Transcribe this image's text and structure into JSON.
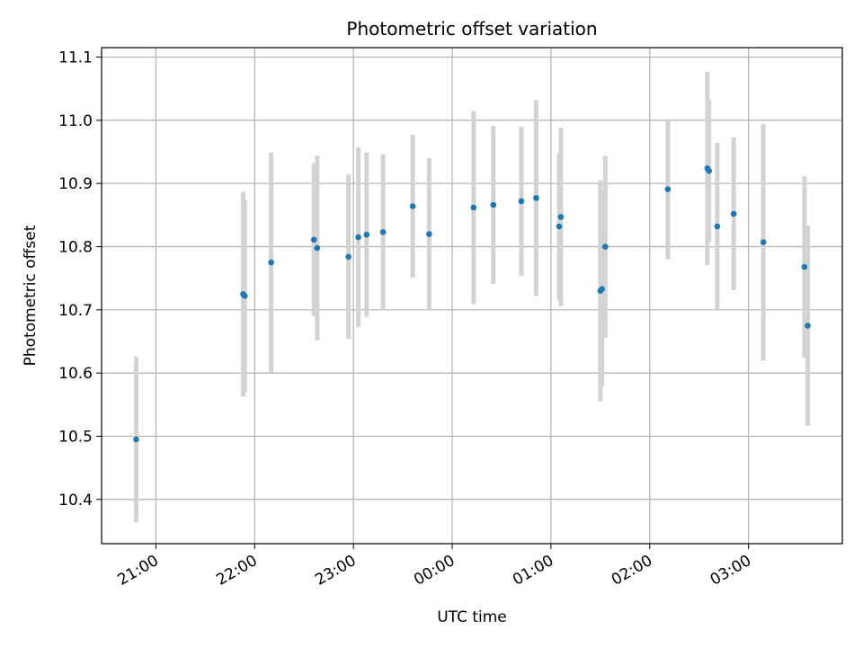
{
  "chart_data": {
    "type": "scatter",
    "title": "Photometric offset variation",
    "xlabel": "UTC time",
    "ylabel": "Photometric offset",
    "x_axis_type": "time",
    "x_range": [
      "20:27",
      "03:57"
    ],
    "x_ticks": [
      "21:00",
      "22:00",
      "23:00",
      "00:00",
      "01:00",
      "02:00",
      "03:00"
    ],
    "ylim": [
      10.33,
      11.115
    ],
    "y_ticks": [
      "10.4",
      "10.5",
      "10.6",
      "10.7",
      "10.8",
      "10.9",
      "11.0",
      "11.1"
    ],
    "grid": true,
    "colors": {
      "marker": "#1f77b4",
      "errorbar": "#d3d3d3"
    },
    "points": [
      {
        "x": "20:48",
        "y": 10.495,
        "err": 0.131
      },
      {
        "x": "21:53",
        "y": 10.725,
        "err": 0.162
      },
      {
        "x": "21:54",
        "y": 10.722,
        "err": 0.152
      },
      {
        "x": "22:10",
        "y": 10.775,
        "err": 0.174
      },
      {
        "x": "22:36",
        "y": 10.811,
        "err": 0.121
      },
      {
        "x": "22:38",
        "y": 10.798,
        "err": 0.146
      },
      {
        "x": "22:57",
        "y": 10.784,
        "err": 0.13
      },
      {
        "x": "23:03",
        "y": 10.815,
        "err": 0.142
      },
      {
        "x": "23:08",
        "y": 10.819,
        "err": 0.13
      },
      {
        "x": "23:18",
        "y": 10.823,
        "err": 0.123
      },
      {
        "x": "23:36",
        "y": 10.864,
        "err": 0.113
      },
      {
        "x": "23:46",
        "y": 10.82,
        "err": 0.12
      },
      {
        "x": "00:13",
        "y": 10.862,
        "err": 0.153
      },
      {
        "x": "00:25",
        "y": 10.866,
        "err": 0.125
      },
      {
        "x": "00:42",
        "y": 10.872,
        "err": 0.118
      },
      {
        "x": "00:51",
        "y": 10.877,
        "err": 0.155
      },
      {
        "x": "01:05",
        "y": 10.832,
        "err": 0.116
      },
      {
        "x": "01:06",
        "y": 10.847,
        "err": 0.141
      },
      {
        "x": "01:30",
        "y": 10.73,
        "err": 0.175
      },
      {
        "x": "01:31",
        "y": 10.733,
        "err": 0.154
      },
      {
        "x": "01:33",
        "y": 10.8,
        "err": 0.144
      },
      {
        "x": "02:11",
        "y": 10.891,
        "err": 0.111
      },
      {
        "x": "02:35",
        "y": 10.924,
        "err": 0.153
      },
      {
        "x": "02:36",
        "y": 10.92,
        "err": 0.112
      },
      {
        "x": "02:41",
        "y": 10.832,
        "err": 0.132
      },
      {
        "x": "02:51",
        "y": 10.852,
        "err": 0.121
      },
      {
        "x": "03:09",
        "y": 10.807,
        "err": 0.187
      },
      {
        "x": "03:34",
        "y": 10.768,
        "err": 0.144
      },
      {
        "x": "03:36",
        "y": 10.675,
        "err": 0.158
      }
    ]
  }
}
